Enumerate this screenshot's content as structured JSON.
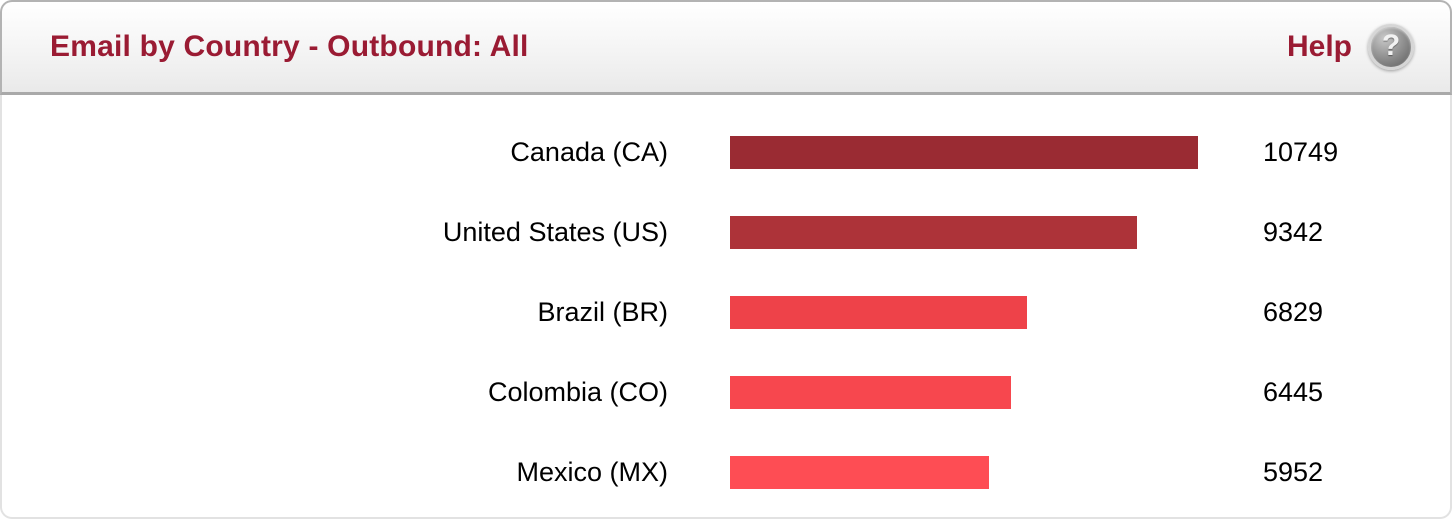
{
  "header": {
    "title": "Email by Country - Outbound: All",
    "help_label": "Help",
    "help_icon_glyph": "?"
  },
  "colors": {
    "title_text": "#9a1b33",
    "header_divider": "#a9a9a9",
    "bar_colors": [
      "#9a2b33",
      "#ad3339",
      "#ee4249",
      "#f7474e",
      "#fe4d54"
    ]
  },
  "chart_data": {
    "type": "bar",
    "orientation": "horizontal",
    "title": "Email by Country - Outbound: All",
    "categories": [
      "Canada (CA)",
      "United States (US)",
      "Brazil (BR)",
      "Colombia (CO)",
      "Mexico (MX)"
    ],
    "values": [
      10749,
      9342,
      6829,
      6445,
      5952
    ],
    "max_value": 10749,
    "value_labels_shown": true,
    "xlabel": "",
    "ylabel": "",
    "grid": false,
    "legend": "none"
  }
}
